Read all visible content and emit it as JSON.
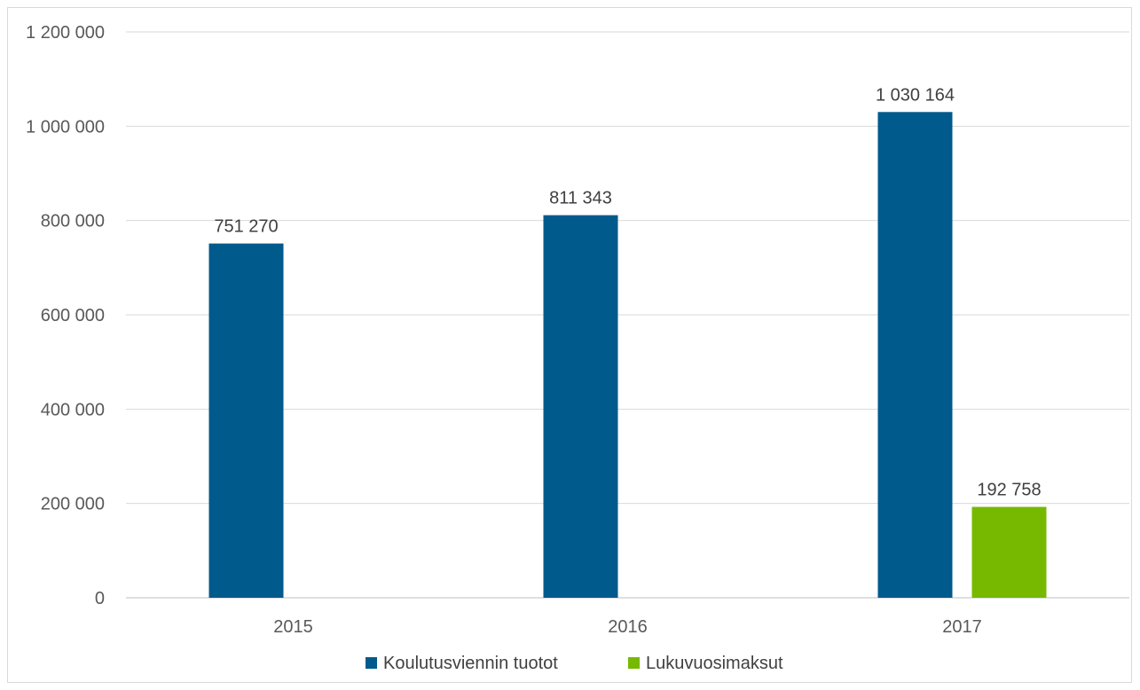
{
  "chart_data": {
    "type": "bar",
    "categories": [
      "2015",
      "2016",
      "2017"
    ],
    "series": [
      {
        "name": "Koulutusviennin tuotot",
        "color": "#005a8c",
        "values": [
          751270,
          811343,
          1030164
        ],
        "labels": [
          "751 270",
          "811 343",
          "1 030 164"
        ]
      },
      {
        "name": "Lukuvuosimaksut",
        "color": "#76b900",
        "values": [
          null,
          null,
          192758
        ],
        "labels": [
          "",
          "",
          "192 758"
        ]
      }
    ],
    "ylim": [
      0,
      1200000
    ],
    "yticks": [
      0,
      200000,
      400000,
      600000,
      800000,
      1000000,
      1200000
    ],
    "ytick_labels": [
      "0",
      "200 000",
      "400 000",
      "600 000",
      "800 000",
      "1 000 000",
      "1 200 000"
    ],
    "grid": true,
    "legend": "bottom",
    "title": "",
    "xlabel": "",
    "ylabel": ""
  }
}
